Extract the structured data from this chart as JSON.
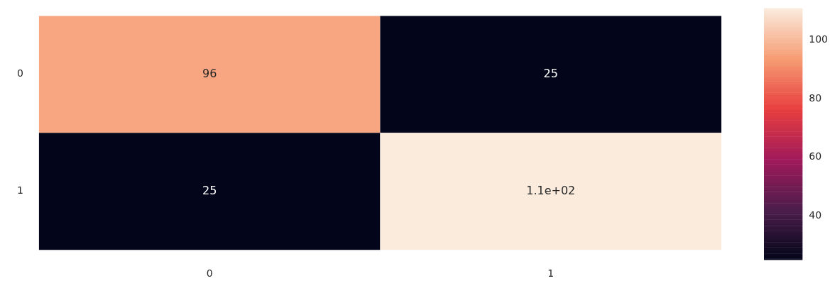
{
  "chart_data": {
    "type": "heatmap",
    "categories": [
      "0",
      "1"
    ],
    "y_categories": [
      "0",
      "1"
    ],
    "cells": [
      [
        96,
        25
      ],
      [
        25,
        111
      ]
    ],
    "cell_labels": [
      [
        "96",
        "25"
      ],
      [
        "25",
        "1.1e+02"
      ]
    ],
    "clim": [
      25,
      111
    ],
    "cticks": [
      40,
      60,
      80,
      100
    ]
  }
}
